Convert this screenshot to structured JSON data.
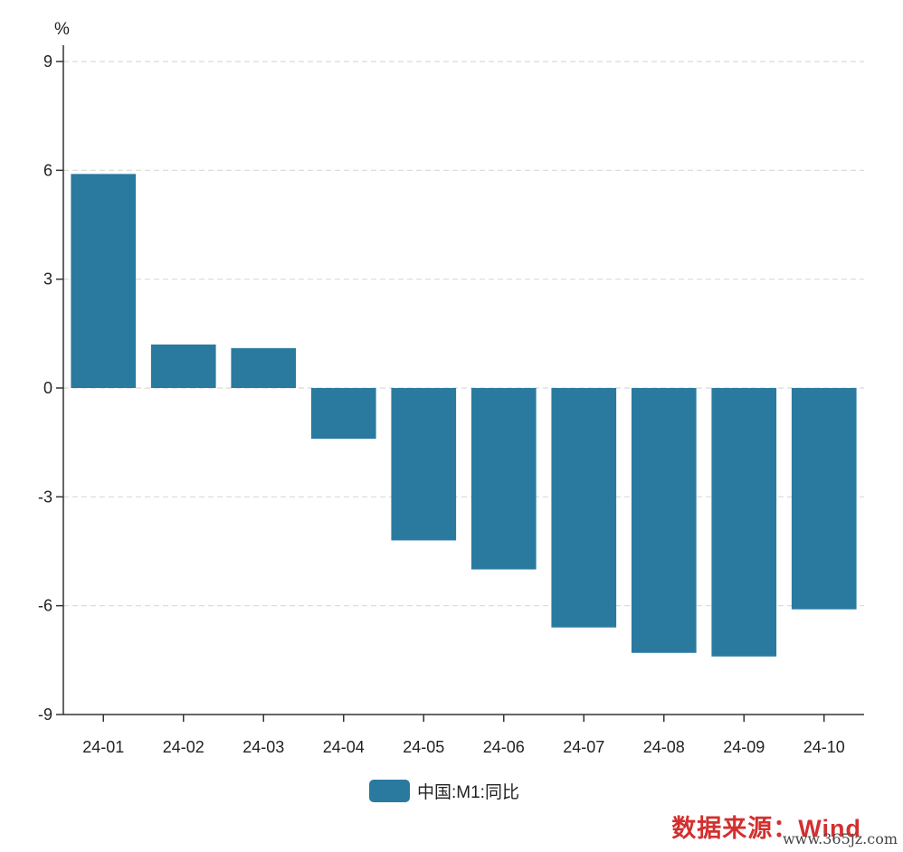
{
  "chart_data": {
    "type": "bar",
    "unit": "%",
    "categories": [
      "24-01",
      "24-02",
      "24-03",
      "24-04",
      "24-05",
      "24-06",
      "24-07",
      "24-08",
      "24-09",
      "24-10"
    ],
    "series": [
      {
        "name": "中国:M1:同比",
        "values": [
          5.9,
          1.2,
          1.1,
          -1.4,
          -4.2,
          -5.0,
          -6.6,
          -7.3,
          -7.4,
          -6.1
        ],
        "color": "#2a7aa0"
      }
    ],
    "yticks": [
      "9",
      "6",
      "3",
      "0",
      "-3",
      "-6",
      "-9"
    ],
    "ylim": [
      -9,
      9
    ],
    "grid": true,
    "legend_position": "bottom-center"
  },
  "legend": {
    "label": "中国:M1:同比",
    "color": "#2a7aa0"
  },
  "source": "数据来源：Wind",
  "watermark": "www.365jz.com"
}
